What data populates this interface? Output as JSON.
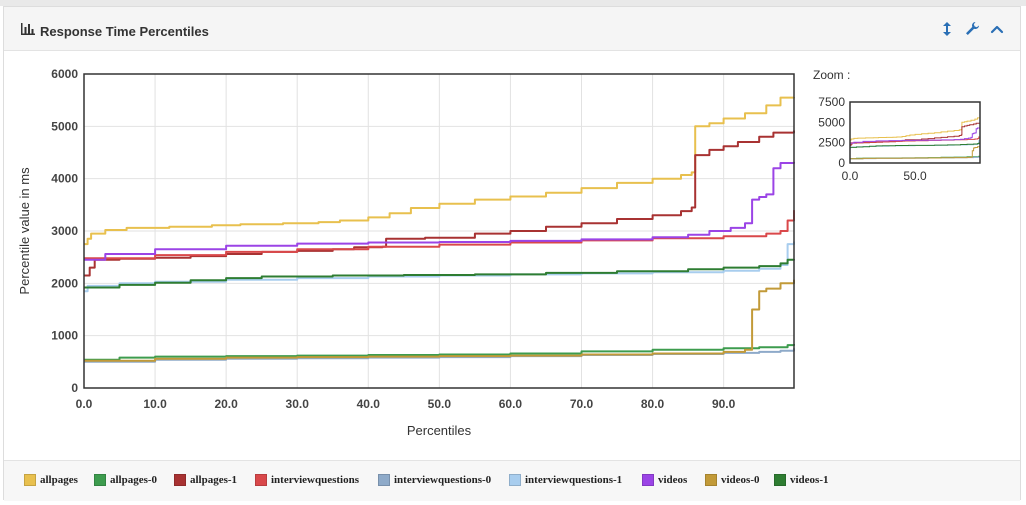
{
  "panel": {
    "title": "Response Time Percentiles"
  },
  "chart_data": {
    "type": "line",
    "xlabel": "Percentiles",
    "ylabel": "Percentile value in ms",
    "xlim": [
      0,
      99.9
    ],
    "ylim": [
      0,
      6000
    ],
    "xticks": [
      "0.0",
      "10.0",
      "20.0",
      "30.0",
      "40.0",
      "50.0",
      "60.0",
      "70.0",
      "80.0",
      "90.0"
    ],
    "yticks": [
      "0",
      "1000",
      "2000",
      "3000",
      "4000",
      "5000",
      "6000"
    ],
    "grid": true,
    "zoom": {
      "label": "Zoom :",
      "yticks": [
        "0",
        "2500",
        "5000",
        "7500"
      ],
      "xticks": [
        "0.0",
        "50.0"
      ],
      "ylim": [
        0,
        7500
      ]
    },
    "series": [
      {
        "name": "allpages",
        "color": "#e8c04e",
        "points": [
          [
            0,
            2750
          ],
          [
            0.5,
            2850
          ],
          [
            1,
            2950
          ],
          [
            3,
            3020
          ],
          [
            6,
            3060
          ],
          [
            12,
            3080
          ],
          [
            18,
            3110
          ],
          [
            22,
            3130
          ],
          [
            28,
            3150
          ],
          [
            33,
            3170
          ],
          [
            36,
            3200
          ],
          [
            40,
            3260
          ],
          [
            43,
            3340
          ],
          [
            46,
            3440
          ],
          [
            50,
            3520
          ],
          [
            55,
            3600
          ],
          [
            60,
            3660
          ],
          [
            65,
            3730
          ],
          [
            70,
            3820
          ],
          [
            75,
            3920
          ],
          [
            80,
            4000
          ],
          [
            84,
            4070
          ],
          [
            85.5,
            4120
          ],
          [
            86,
            5000
          ],
          [
            88,
            5060
          ],
          [
            90,
            5150
          ],
          [
            93,
            5250
          ],
          [
            96,
            5400
          ],
          [
            98,
            5550
          ],
          [
            99.9,
            5560
          ]
        ]
      },
      {
        "name": "allpages-0",
        "color": "#3d9c4e",
        "points": [
          [
            0,
            540
          ],
          [
            5,
            580
          ],
          [
            10,
            600
          ],
          [
            20,
            610
          ],
          [
            30,
            620
          ],
          [
            40,
            630
          ],
          [
            50,
            640
          ],
          [
            60,
            660
          ],
          [
            70,
            700
          ],
          [
            80,
            730
          ],
          [
            90,
            760
          ],
          [
            95,
            780
          ],
          [
            99,
            820
          ],
          [
            99.9,
            840
          ]
        ]
      },
      {
        "name": "allpages-1",
        "color": "#a83232",
        "points": [
          [
            0,
            2150
          ],
          [
            0.8,
            2300
          ],
          [
            1.5,
            2450
          ],
          [
            5,
            2470
          ],
          [
            10,
            2490
          ],
          [
            15,
            2520
          ],
          [
            20,
            2560
          ],
          [
            25,
            2600
          ],
          [
            30,
            2620
          ],
          [
            35,
            2650
          ],
          [
            38,
            2690
          ],
          [
            42,
            2700
          ],
          [
            42.5,
            2850
          ],
          [
            48,
            2870
          ],
          [
            55,
            2950
          ],
          [
            60,
            3000
          ],
          [
            65,
            3080
          ],
          [
            70,
            3150
          ],
          [
            75,
            3230
          ],
          [
            80,
            3300
          ],
          [
            84,
            3380
          ],
          [
            85.5,
            3450
          ],
          [
            86,
            4450
          ],
          [
            88,
            4550
          ],
          [
            90,
            4620
          ],
          [
            92,
            4700
          ],
          [
            95,
            4800
          ],
          [
            97,
            4880
          ],
          [
            99.9,
            4920
          ]
        ]
      },
      {
        "name": "interviewquestions",
        "color": "#d9484a",
        "points": [
          [
            0,
            2480
          ],
          [
            10,
            2540
          ],
          [
            20,
            2600
          ],
          [
            30,
            2650
          ],
          [
            40,
            2700
          ],
          [
            50,
            2740
          ],
          [
            60,
            2780
          ],
          [
            70,
            2820
          ],
          [
            80,
            2860
          ],
          [
            90,
            2900
          ],
          [
            96,
            2950
          ],
          [
            98,
            3000
          ],
          [
            99,
            3200
          ],
          [
            99.9,
            3400
          ]
        ]
      },
      {
        "name": "interviewquestions-0",
        "color": "#8eaac9",
        "points": [
          [
            0,
            500
          ],
          [
            10,
            540
          ],
          [
            20,
            560
          ],
          [
            30,
            570
          ],
          [
            40,
            580
          ],
          [
            50,
            590
          ],
          [
            60,
            610
          ],
          [
            70,
            630
          ],
          [
            80,
            650
          ],
          [
            90,
            670
          ],
          [
            95,
            690
          ],
          [
            98,
            710
          ],
          [
            99.9,
            760
          ]
        ]
      },
      {
        "name": "interviewquestions-1",
        "color": "#a8cdee",
        "points": [
          [
            0,
            1850
          ],
          [
            0.5,
            1950
          ],
          [
            5,
            2000
          ],
          [
            10,
            2030
          ],
          [
            20,
            2070
          ],
          [
            30,
            2100
          ],
          [
            40,
            2130
          ],
          [
            50,
            2150
          ],
          [
            60,
            2170
          ],
          [
            70,
            2190
          ],
          [
            80,
            2210
          ],
          [
            90,
            2240
          ],
          [
            95,
            2280
          ],
          [
            98,
            2350
          ],
          [
            99,
            2750
          ],
          [
            99.9,
            2800
          ]
        ]
      },
      {
        "name": "videos",
        "color": "#9b44e6",
        "points": [
          [
            0,
            2450
          ],
          [
            3,
            2560
          ],
          [
            10,
            2650
          ],
          [
            20,
            2720
          ],
          [
            30,
            2760
          ],
          [
            40,
            2780
          ],
          [
            50,
            2790
          ],
          [
            60,
            2810
          ],
          [
            70,
            2840
          ],
          [
            80,
            2880
          ],
          [
            85,
            2930
          ],
          [
            88,
            3000
          ],
          [
            91,
            3060
          ],
          [
            93,
            3150
          ],
          [
            94,
            3600
          ],
          [
            95,
            3650
          ],
          [
            96,
            3700
          ],
          [
            97,
            4200
          ],
          [
            98,
            4300
          ],
          [
            99.9,
            4320
          ]
        ]
      },
      {
        "name": "videos-0",
        "color": "#c29a38",
        "points": [
          [
            0,
            520
          ],
          [
            10,
            560
          ],
          [
            20,
            580
          ],
          [
            30,
            590
          ],
          [
            40,
            600
          ],
          [
            50,
            610
          ],
          [
            60,
            620
          ],
          [
            70,
            640
          ],
          [
            80,
            660
          ],
          [
            90,
            690
          ],
          [
            93,
            730
          ],
          [
            94,
            1500
          ],
          [
            95,
            1850
          ],
          [
            96,
            1900
          ],
          [
            98,
            2000
          ],
          [
            99.9,
            2070
          ]
        ]
      },
      {
        "name": "videos-1",
        "color": "#2e7d32",
        "points": [
          [
            0,
            1920
          ],
          [
            5,
            1970
          ],
          [
            10,
            2010
          ],
          [
            15,
            2060
          ],
          [
            20,
            2100
          ],
          [
            25,
            2130
          ],
          [
            35,
            2150
          ],
          [
            45,
            2160
          ],
          [
            55,
            2170
          ],
          [
            65,
            2200
          ],
          [
            75,
            2230
          ],
          [
            85,
            2270
          ],
          [
            90,
            2300
          ],
          [
            95,
            2330
          ],
          [
            98,
            2380
          ],
          [
            99,
            2450
          ],
          [
            99.9,
            2460
          ]
        ]
      }
    ]
  }
}
